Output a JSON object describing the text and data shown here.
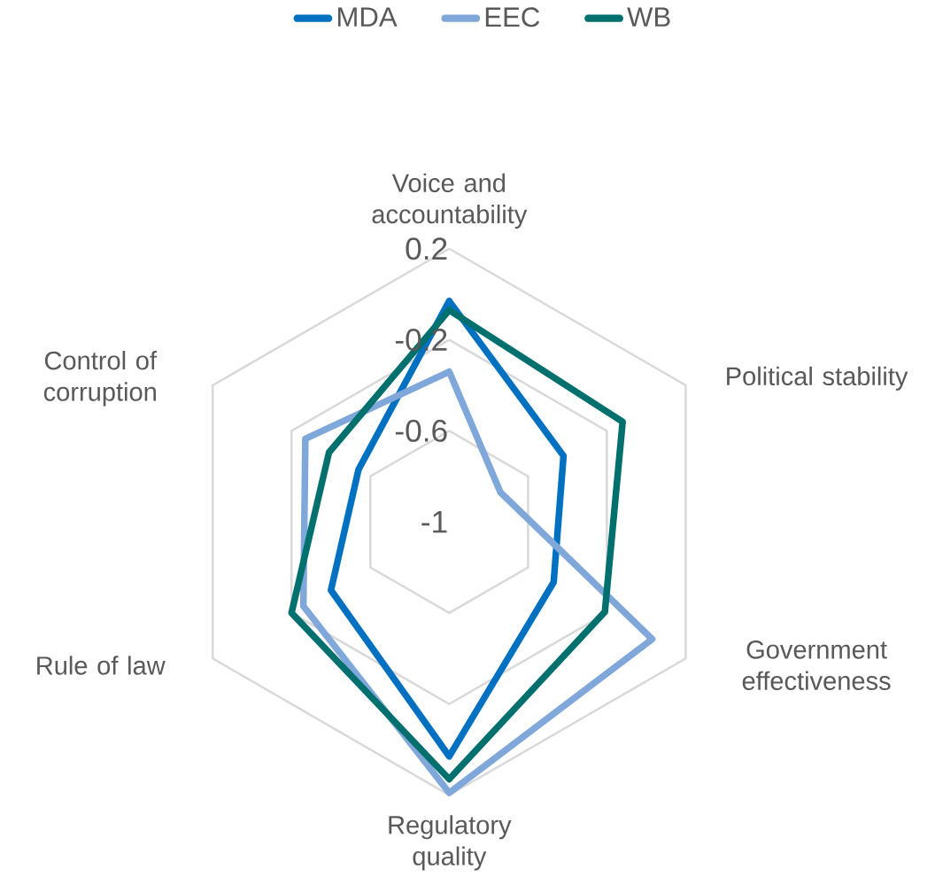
{
  "chart_data": {
    "type": "radar",
    "categories": [
      "Voice and accountability",
      "Political stability",
      "Government effectiveness",
      "Regulatory quality",
      "Rule of law",
      "Control of corruption"
    ],
    "series": [
      {
        "name": "MDA",
        "color": "#0070c0",
        "values": [
          -0.03,
          -0.42,
          -0.47,
          0.03,
          -0.4,
          -0.54
        ]
      },
      {
        "name": "EEC",
        "color": "#7fa7d9",
        "values": [
          -0.34,
          -0.74,
          0.03,
          0.19,
          -0.26,
          -0.27
        ]
      },
      {
        "name": "WB",
        "color": "#00706e",
        "values": [
          -0.07,
          -0.12,
          -0.21,
          0.13,
          -0.2,
          -0.39
        ]
      }
    ],
    "ylim": [
      -1,
      0.2
    ],
    "yticks": [
      0.2,
      -0.2,
      -0.6,
      -1
    ],
    "grid": true,
    "legend": "top"
  }
}
